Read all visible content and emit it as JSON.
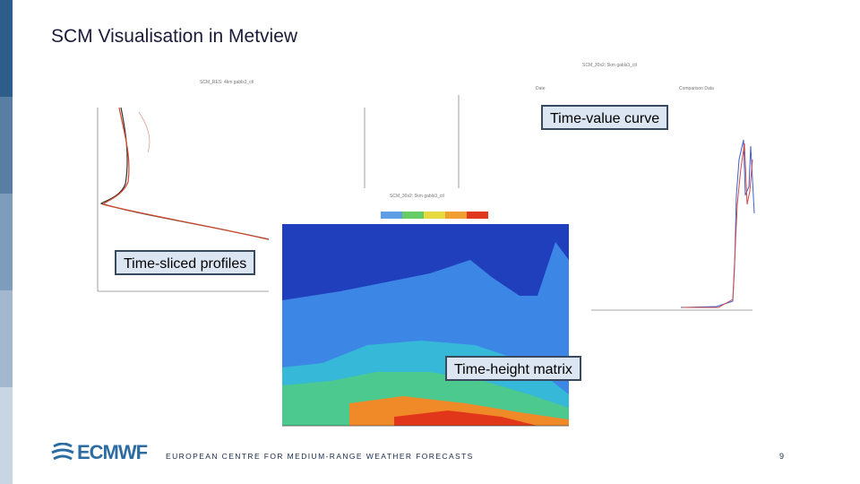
{
  "colors": {
    "leftbar": [
      "#2f5d8a",
      "#587ea3",
      "#7e9dbc",
      "#a3b8cf",
      "#c8d5e3"
    ],
    "accent": "#2d6ca2",
    "callout_bg": "#dce6f2"
  },
  "slide": {
    "title": "SCM Visualisation in Metview",
    "footer": "EUROPEAN CENTRE FOR MEDIUM-RANGE WEATHER FORECASTS",
    "page_number": "9",
    "logo_text": "ECMWF"
  },
  "callouts": {
    "time_value": "Time-value curve",
    "time_sliced": "Time-sliced profiles",
    "time_height": "Time-height matrix"
  },
  "plots": {
    "profiles_title": "SCM_RES: 4km gabls3_ctl",
    "timevalue_title": "SCM_30s2: 5km gabls3_ctl",
    "timevalue_legend_left": "Date",
    "timevalue_legend_right": "Comparison Data",
    "matrix_title": "SCM_30s2: 5km gabls3_ctl"
  }
}
